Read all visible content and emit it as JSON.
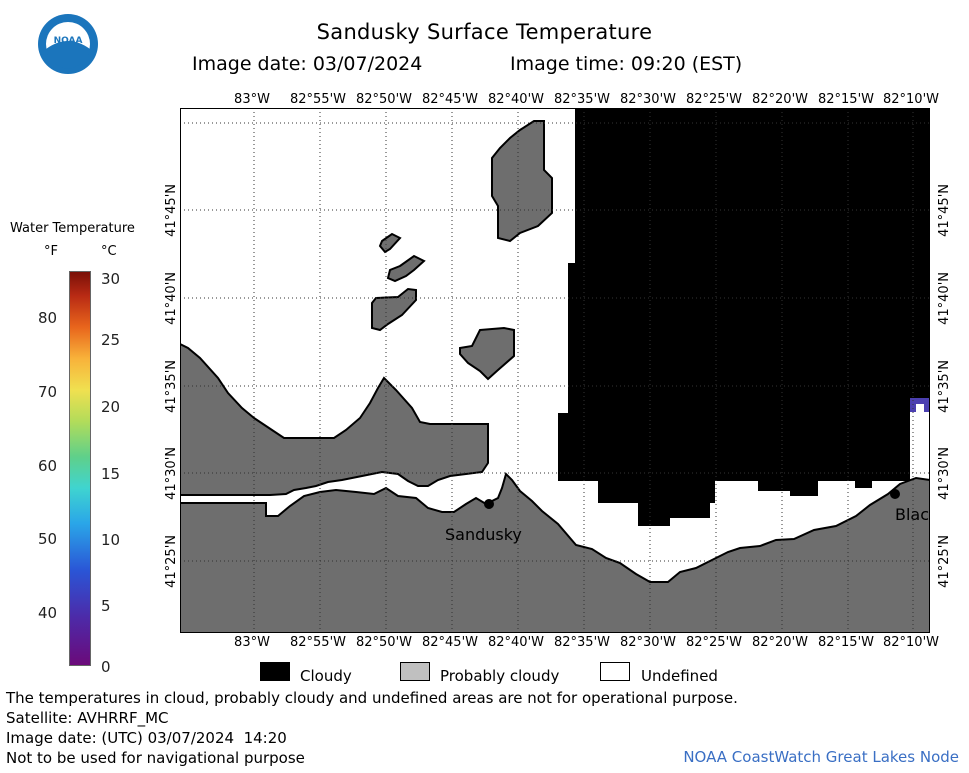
{
  "header": {
    "title": "Sandusky Surface Temperature",
    "image_date": "Image date: 03/07/2024",
    "image_time": "Image time: 09:20 (EST)"
  },
  "logo": {
    "text": "NOAA",
    "icon": "noaa-logo"
  },
  "map": {
    "lon_labels": [
      "83°W",
      "82°55'W",
      "82°50'W",
      "82°45'W",
      "82°40'W",
      "82°35'W",
      "82°30'W",
      "82°25'W",
      "82°20'W",
      "82°15'W",
      "82°10'W"
    ],
    "lat_labels": [
      "41°45'N",
      "41°40'N",
      "41°35'N",
      "41°30'N",
      "41°25'N"
    ],
    "cities": [
      {
        "name": "Sandusky"
      },
      {
        "name": "Blac"
      }
    ],
    "colors": {
      "land": "#6e6e6e",
      "cloud": "#000000",
      "water_undefined": "#ffffff",
      "cold_water": "#4b3fb0"
    }
  },
  "colorbar": {
    "title": "Water Temperature",
    "unit_f": "°F",
    "unit_c": "°C",
    "f_ticks": [
      "40",
      "50",
      "60",
      "70",
      "80"
    ],
    "c_ticks": [
      "0",
      "5",
      "10",
      "15",
      "20",
      "25",
      "30"
    ]
  },
  "legend": {
    "cloudy": "Cloudy",
    "probably_cloudy": "Probably cloudy",
    "undefined": "Undefined"
  },
  "footer": {
    "disclaimer": "The temperatures in cloud, probably cloudy and undefined areas are not for operational purpose.",
    "satellite": "Satellite: AVHRRF_MC",
    "utc_date": "Image date: (UTC) 03/07/2024  14:20",
    "nav_note": "Not to be used for navigational purpose",
    "credit": "NOAA CoastWatch Great Lakes Node"
  }
}
